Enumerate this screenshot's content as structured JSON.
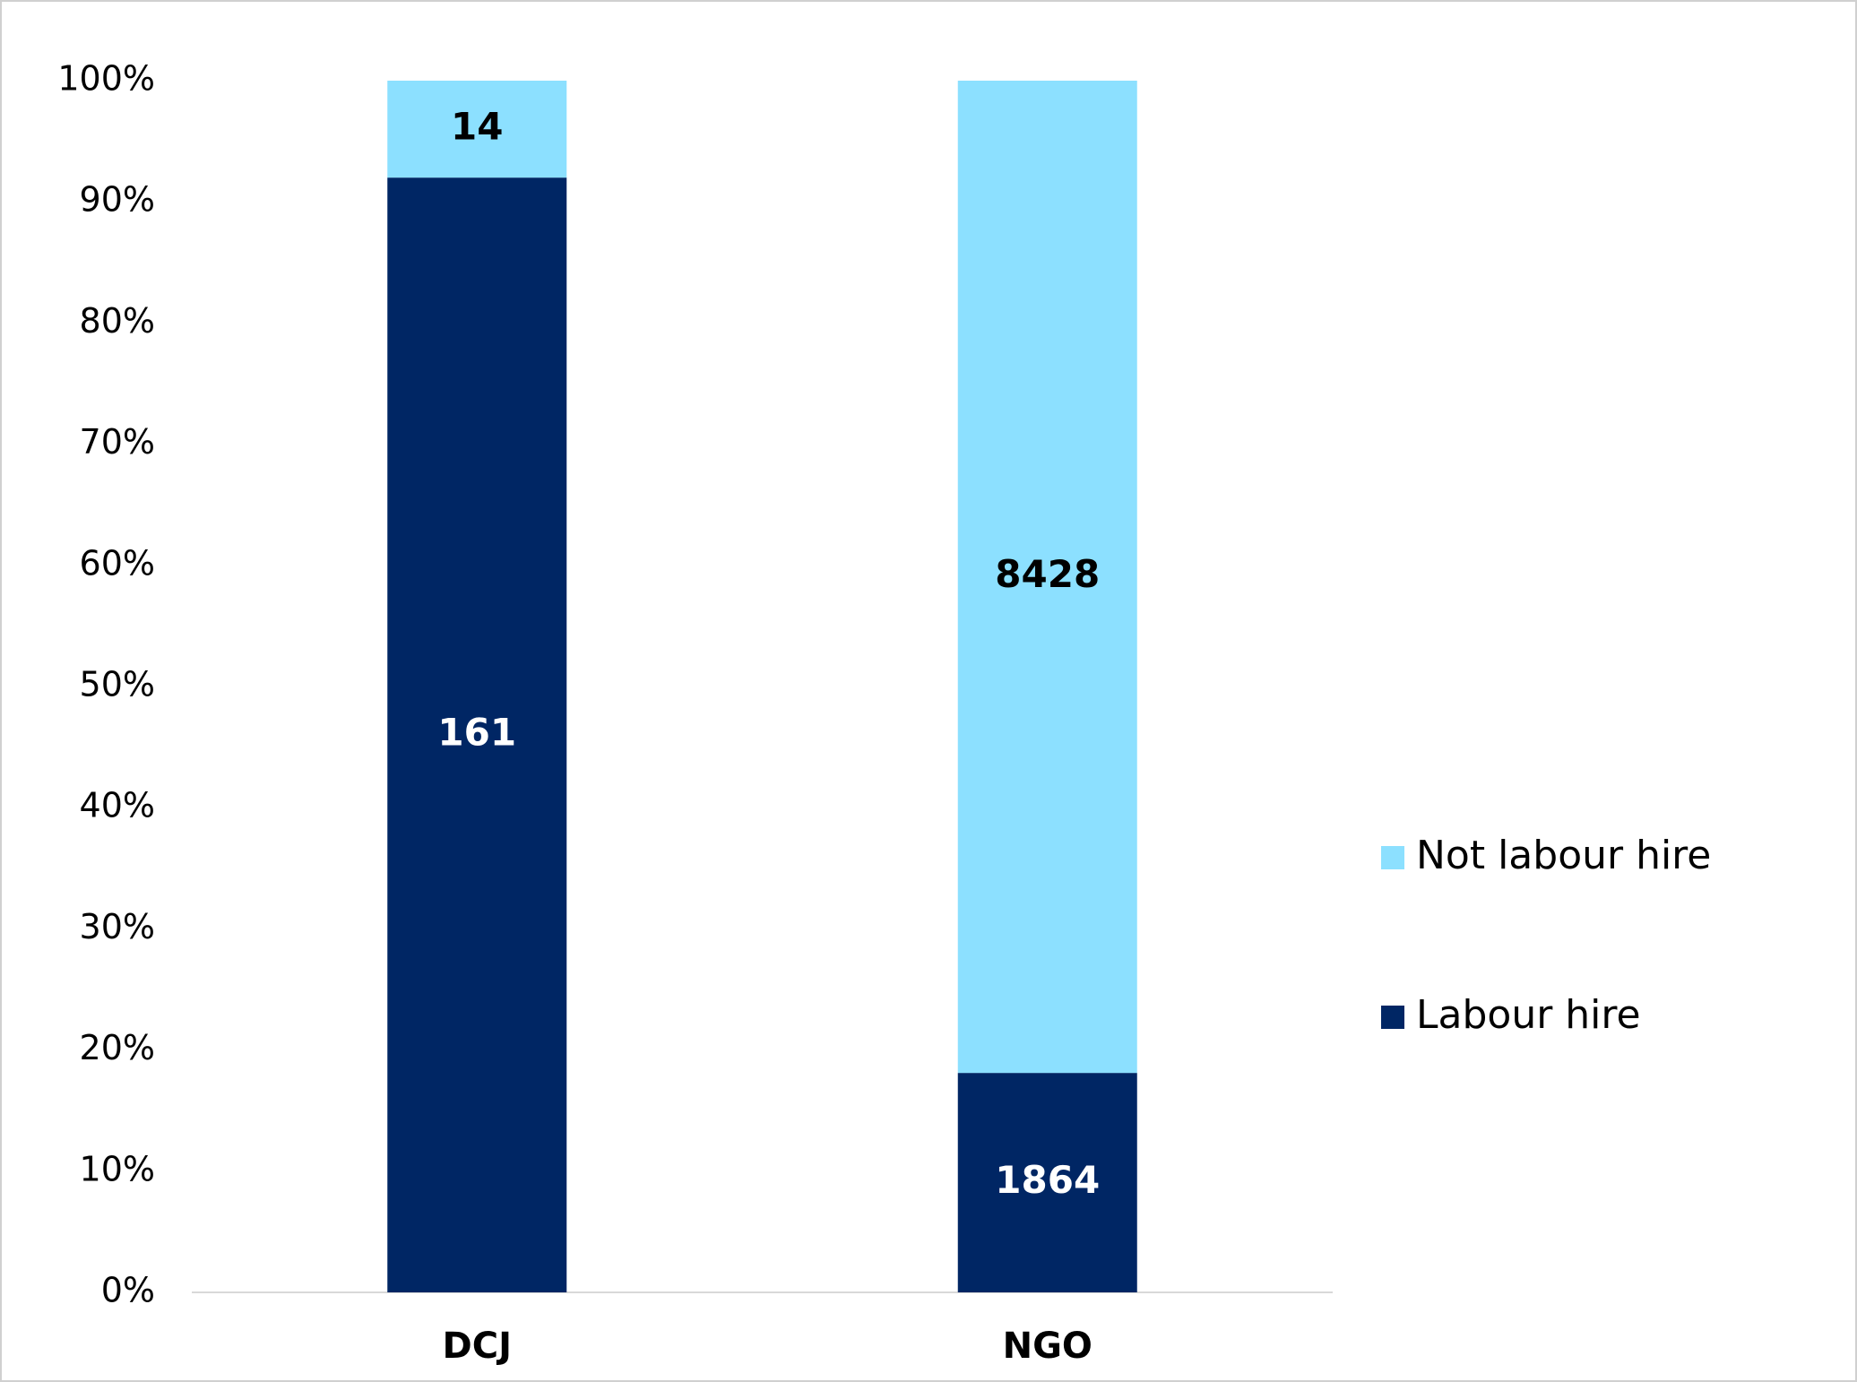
{
  "chart_data": {
    "type": "bar",
    "stacking": "percent",
    "categories": [
      "DCJ",
      "NGO"
    ],
    "series": [
      {
        "name": "Labour hire",
        "color": "#002664",
        "label_color": "#ffffff",
        "values": [
          161,
          1864
        ]
      },
      {
        "name": "Not labour hire",
        "color": "#8ce0ff",
        "label_color": "#000000",
        "values": [
          14,
          8428
        ]
      }
    ],
    "ylim": [
      0,
      100
    ],
    "yticks": [
      {
        "value": 0,
        "label": "0%"
      },
      {
        "value": 10,
        "label": "10%"
      },
      {
        "value": 20,
        "label": "20%"
      },
      {
        "value": 30,
        "label": "30%"
      },
      {
        "value": 40,
        "label": "40%"
      },
      {
        "value": 50,
        "label": "50%"
      },
      {
        "value": 60,
        "label": "60%"
      },
      {
        "value": 70,
        "label": "70%"
      },
      {
        "value": 80,
        "label": "80%"
      },
      {
        "value": 90,
        "label": "90%"
      },
      {
        "value": 100,
        "label": "100%"
      }
    ],
    "grid": false,
    "legend": "right"
  }
}
